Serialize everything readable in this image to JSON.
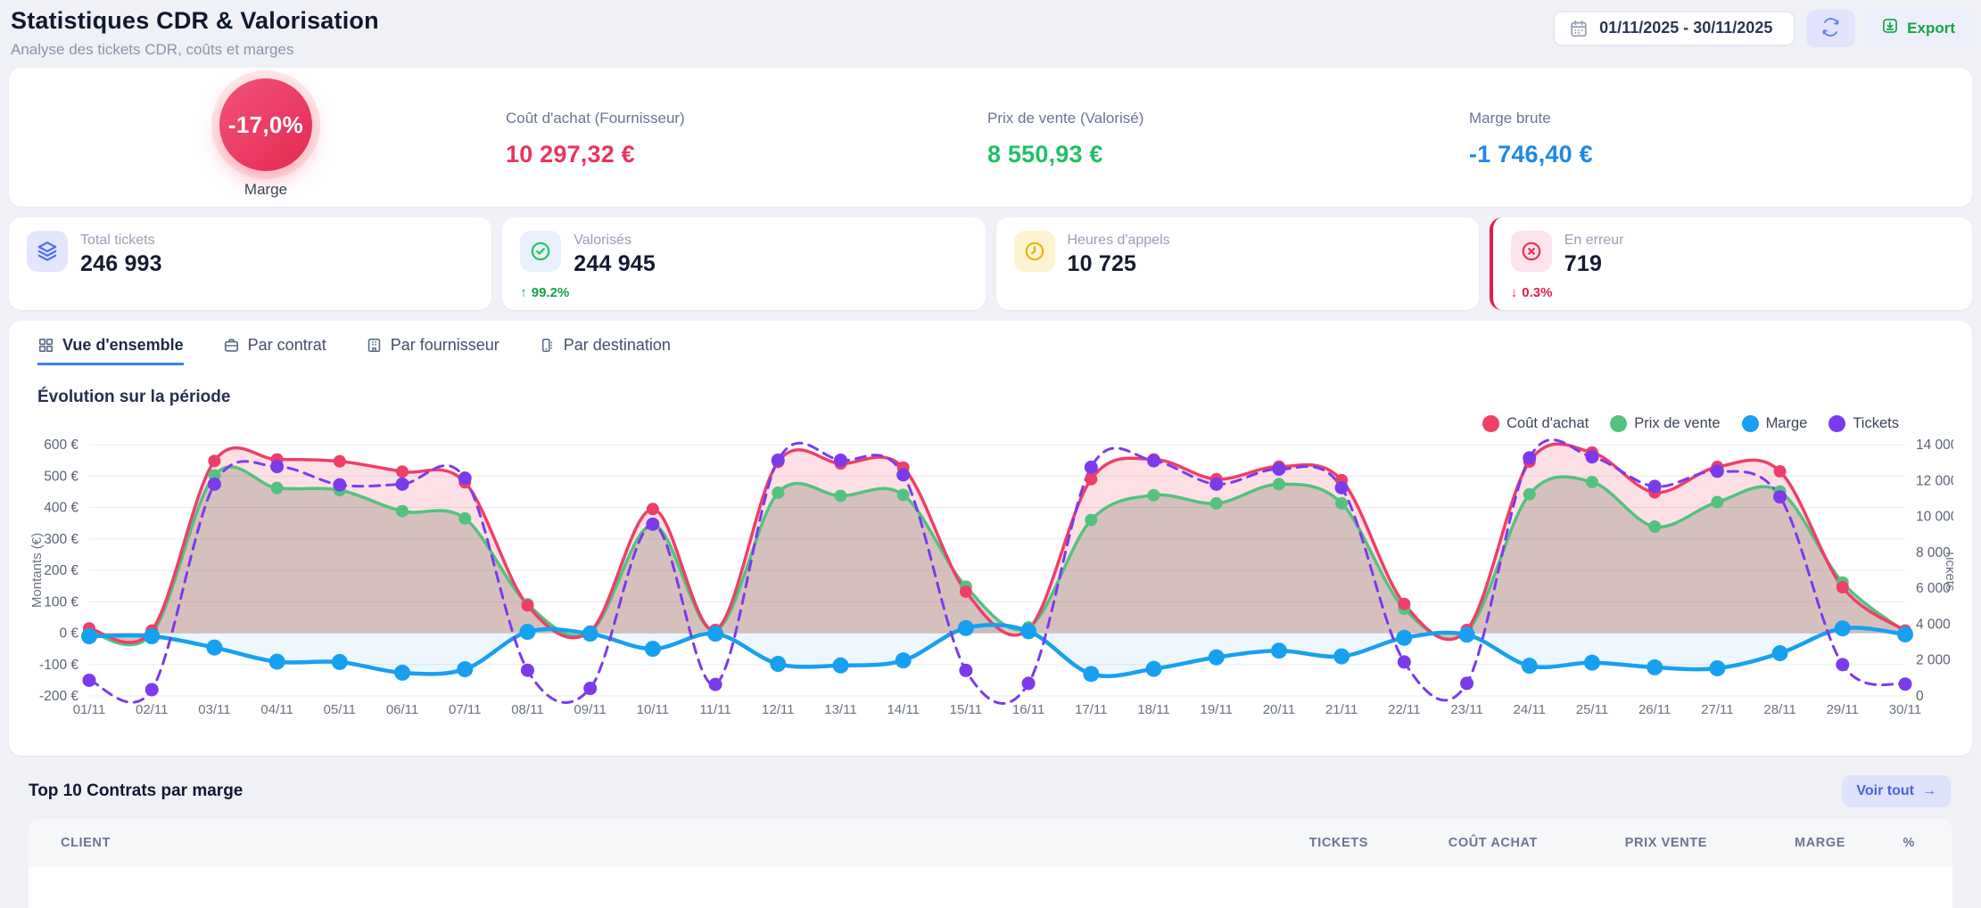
{
  "page": {
    "title": "Statistiques CDR & Valorisation",
    "subtitle": "Analyse des tickets CDR, coûts et marges"
  },
  "toolbar": {
    "date_range": "01/11/2025 - 30/11/2025",
    "export_label": "Export"
  },
  "summary": {
    "gauge": {
      "value": "-17,0%",
      "label": "Marge"
    },
    "metrics": [
      {
        "label": "Coût d'achat (Fournisseur)",
        "value": "10 297,32 €",
        "color": "#e8365c"
      },
      {
        "label": "Prix de vente (Valorisé)",
        "value": "8 550,93 €",
        "color": "#21c064"
      },
      {
        "label": "Marge brute",
        "value": "-1 746,40 €",
        "color": "#1e88e5"
      }
    ]
  },
  "kpis": [
    {
      "label": "Total tickets",
      "value": "246 993"
    },
    {
      "label": "Valorisés",
      "value": "244 945",
      "delta": "99.2%",
      "delta_arrow": "↑",
      "delta_color": "#16a34a"
    },
    {
      "label": "Heures d'appels",
      "value": "10 725"
    },
    {
      "label": "En erreur",
      "value": "719",
      "delta": "0.3%",
      "delta_arrow": "↓",
      "delta_color": "#e11d48"
    }
  ],
  "tabs": [
    {
      "label": "Vue d'ensemble",
      "active": true
    },
    {
      "label": "Par contrat",
      "active": false
    },
    {
      "label": "Par fournisseur",
      "active": false
    },
    {
      "label": "Par destination",
      "active": false
    }
  ],
  "chart_data": {
    "type": "line",
    "title": "Évolution sur la période",
    "grid": true,
    "legend_position": "top-right",
    "x": [
      "01/11",
      "02/11",
      "03/11",
      "04/11",
      "05/11",
      "06/11",
      "07/11",
      "08/11",
      "09/11",
      "10/11",
      "11/11",
      "12/11",
      "13/11",
      "14/11",
      "15/11",
      "16/11",
      "17/11",
      "18/11",
      "19/11",
      "20/11",
      "21/11",
      "22/11",
      "23/11",
      "24/11",
      "25/11",
      "26/11",
      "27/11",
      "28/11",
      "29/11",
      "30/11"
    ],
    "left_axis": {
      "label": "Montants (€)",
      "min": -200,
      "max": 600,
      "step": 100,
      "tick_suffix": " €"
    },
    "right_axis": {
      "label": "Tickets",
      "min": 0,
      "max": 14000,
      "step": 2000
    },
    "series": [
      {
        "name": "Coût d'achat",
        "axis": "left",
        "style": "solid",
        "color": "#ee3f68",
        "fill_color": "rgba(244,63,94,0.16)",
        "values": [
          15,
          8,
          548,
          553,
          547,
          514,
          480,
          88,
          5,
          395,
          10,
          545,
          540,
          527,
          132,
          12,
          490,
          553,
          490,
          530,
          487,
          93,
          10,
          546,
          575,
          448,
          529,
          515,
          146,
          8
        ]
      },
      {
        "name": "Prix de vente",
        "axis": "left",
        "style": "solid",
        "color": "#53c27f",
        "fill_color": "rgba(125,118,100,0.30)",
        "values": [
          5,
          -2,
          502,
          462,
          455,
          388,
          365,
          92,
          3,
          345,
          8,
          447,
          437,
          440,
          148,
          18,
          360,
          439,
          413,
          474,
          413,
          78,
          5,
          442,
          481,
          339,
          417,
          451,
          161,
          4
        ]
      },
      {
        "name": "Marge",
        "axis": "left",
        "style": "solid",
        "color": "#18a0f0",
        "fill_color": "rgba(30,155,235,0.08)",
        "values": [
          -10,
          -10,
          -46,
          -91,
          -92,
          -126,
          -115,
          4,
          -2,
          -50,
          -2,
          -98,
          -103,
          -87,
          16,
          6,
          -130,
          -114,
          -77,
          -56,
          -74,
          -15,
          -5,
          -104,
          -94,
          -109,
          -112,
          -64,
          15,
          -4
        ]
      },
      {
        "name": "Tickets",
        "axis": "right",
        "style": "dashed",
        "color": "#7c3aed",
        "fill_color": null,
        "values": [
          870,
          350,
          11800,
          12780,
          11760,
          11800,
          12130,
          1430,
          420,
          9570,
          640,
          13130,
          13130,
          12320,
          1420,
          700,
          12740,
          13100,
          11800,
          12640,
          11600,
          1890,
          700,
          13260,
          13320,
          11670,
          12520,
          11090,
          1745,
          660
        ]
      }
    ]
  },
  "bottom": {
    "title": "Top 10 Contrats par marge",
    "view_all_label": "Voir tout",
    "view_all_arrow": "→",
    "columns": [
      "CLIENT",
      "TICKETS",
      "COÛT ACHAT",
      "PRIX VENTE",
      "MARGE",
      "%"
    ]
  },
  "colors": {
    "accent_blue": "#3b82f6",
    "cost_red": "#ee3f68",
    "sale_green": "#53c27f",
    "margin_blue": "#18a0f0",
    "tickets_purple": "#7c3aed",
    "error_red": "#e11d48",
    "success_green": "#16a34a",
    "gauge_red": "#e8365c"
  }
}
